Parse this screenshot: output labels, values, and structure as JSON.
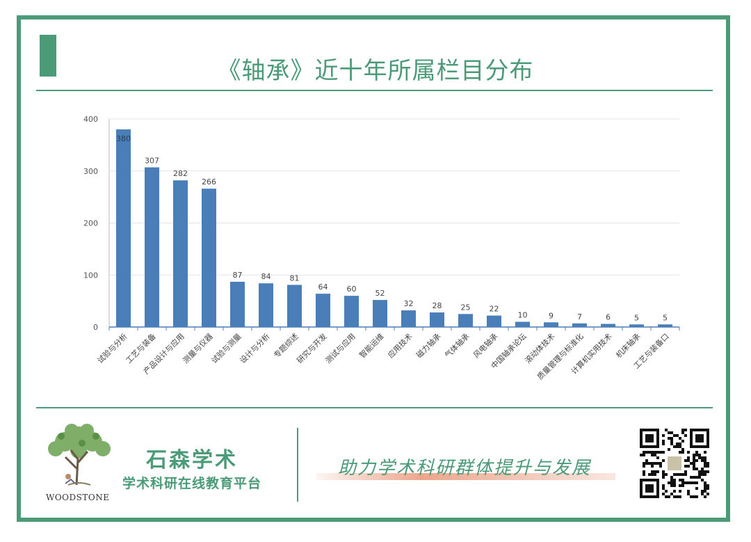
{
  "page": {
    "title": "《轴承》近十年所属栏目分布",
    "brand_name": "石森学术",
    "brand_subtitle": "学术科研在线教育平台",
    "logo_text": "WOODSTONE",
    "slogan": "助力学术科研群体提升与发展"
  },
  "colors": {
    "accent": "#4b9a78",
    "bar": "#4a7eb8"
  },
  "chart_data": {
    "type": "bar",
    "categories": [
      "试验与分析",
      "工艺与装备",
      "产品设计与应用",
      "测量与仪器",
      "试验与测量",
      "设计与分析",
      "专题综述",
      "研究与开发",
      "测试与应用",
      "智能运维",
      "应用技术",
      "磁力轴承",
      "气体轴承",
      "风电轴承",
      "中国轴承论坛",
      "滚动体技术",
      "质量管理与标准化",
      "计算机实用技术",
      "机床轴承",
      "工艺与装备口"
    ],
    "values": [
      380,
      307,
      282,
      266,
      87,
      84,
      81,
      64,
      60,
      52,
      32,
      28,
      25,
      22,
      10,
      9,
      7,
      6,
      5,
      5
    ],
    "yticks": [
      0,
      100,
      200,
      300,
      400
    ],
    "ylim": [
      0,
      400
    ],
    "grid": true,
    "legend": "none"
  }
}
